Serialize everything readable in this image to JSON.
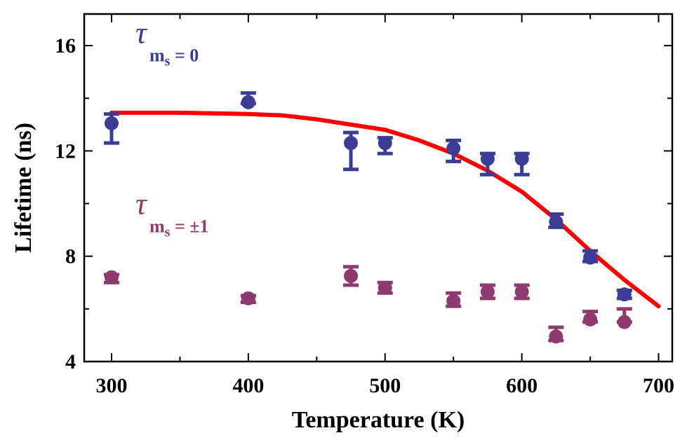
{
  "chart_data": {
    "type": "scatter",
    "xlabel": "Temperature (K)",
    "ylabel": "Lifetime (ns)",
    "xlim": [
      280,
      710
    ],
    "ylim": [
      4,
      17.2
    ],
    "xticks": [
      300,
      400,
      500,
      600,
      700
    ],
    "yticks": [
      4,
      8,
      12,
      16
    ],
    "xminor": [
      350,
      450,
      550,
      650
    ],
    "yminor": [
      6,
      10,
      14
    ],
    "grid": false,
    "series": [
      {
        "name": "ms = 0",
        "color": "#3a3c96",
        "points": [
          {
            "x": 300,
            "y": 13.05,
            "lo": 12.3,
            "hi": 13.4
          },
          {
            "x": 400,
            "y": 13.85,
            "lo": 13.8,
            "hi": 14.2
          },
          {
            "x": 475,
            "y": 12.3,
            "lo": 11.3,
            "hi": 12.7
          },
          {
            "x": 500,
            "y": 12.3,
            "lo": 11.9,
            "hi": 12.5
          },
          {
            "x": 550,
            "y": 12.1,
            "lo": 11.6,
            "hi": 12.4
          },
          {
            "x": 575,
            "y": 11.7,
            "lo": 11.1,
            "hi": 11.9
          },
          {
            "x": 600,
            "y": 11.7,
            "lo": 11.1,
            "hi": 11.9
          },
          {
            "x": 625,
            "y": 9.3,
            "lo": 9.1,
            "hi": 9.6
          },
          {
            "x": 650,
            "y": 7.95,
            "lo": 7.8,
            "hi": 8.2
          },
          {
            "x": 675,
            "y": 6.55,
            "lo": 6.4,
            "hi": 6.7
          }
        ]
      },
      {
        "name": "ms = ±1",
        "color": "#8e3a6e",
        "points": [
          {
            "x": 300,
            "y": 7.2,
            "lo": 7.0,
            "hi": 7.3
          },
          {
            "x": 400,
            "y": 6.4,
            "lo": 6.25,
            "hi": 6.5
          },
          {
            "x": 475,
            "y": 7.25,
            "lo": 6.9,
            "hi": 7.6
          },
          {
            "x": 500,
            "y": 6.8,
            "lo": 6.6,
            "hi": 7.0
          },
          {
            "x": 550,
            "y": 6.3,
            "lo": 6.1,
            "hi": 6.6
          },
          {
            "x": 575,
            "y": 6.65,
            "lo": 6.4,
            "hi": 6.9
          },
          {
            "x": 600,
            "y": 6.65,
            "lo": 6.4,
            "hi": 6.9
          },
          {
            "x": 625,
            "y": 4.95,
            "lo": 4.8,
            "hi": 5.3
          },
          {
            "x": 650,
            "y": 5.6,
            "lo": 5.5,
            "hi": 5.9
          },
          {
            "x": 675,
            "y": 5.5,
            "lo": 5.5,
            "hi": 6.0
          }
        ]
      }
    ],
    "fit_curve": {
      "name": "fit",
      "color": "#ff0000",
      "x": [
        300,
        350,
        400,
        425,
        450,
        475,
        500,
        525,
        550,
        575,
        600,
        625,
        650,
        675,
        700
      ],
      "y": [
        13.45,
        13.45,
        13.4,
        13.35,
        13.2,
        13.0,
        12.8,
        12.4,
        11.9,
        11.25,
        10.45,
        9.4,
        8.2,
        7.1,
        6.1
      ]
    },
    "annotations": [
      {
        "series": 0,
        "symbol": "τ",
        "subscript_main": "m",
        "subscript_sub": "s",
        "text_rest": " = 0",
        "at": {
          "x": 300,
          "y": 16.1
        }
      },
      {
        "series": 1,
        "symbol": "τ",
        "subscript_main": "m",
        "subscript_sub": "s",
        "text_rest": " = ±1",
        "at": {
          "x": 300,
          "y": 9.6
        }
      }
    ]
  }
}
